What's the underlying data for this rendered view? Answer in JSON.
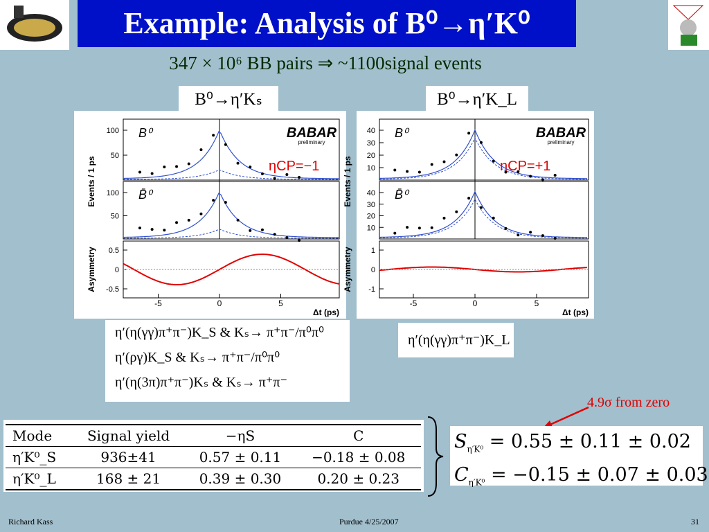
{
  "header": {
    "title": "Example: Analysis of B⁰→η′K⁰",
    "subtitle": "347 × 10⁶ BB pairs ⇒ ~1100signal events"
  },
  "panels": [
    {
      "label": "B⁰→η′Kₛ",
      "cp_label": "ηCP=−1",
      "y_axis_top": "Events / 1 ps",
      "y_axis_bottom": "Asymmetry",
      "x_axis": "Δt (ps)",
      "top_label": "B⁰",
      "middle_label": "B̄⁰",
      "logo": "BABAR",
      "logo_sub": "preliminary",
      "top_ticks": [
        "100",
        "50"
      ],
      "middle_ticks": [
        "100",
        "50"
      ],
      "asym_ticks": [
        "0.5",
        "0",
        "-0.5"
      ],
      "x_ticks": [
        "-5",
        "0",
        "5"
      ]
    },
    {
      "label": "B⁰→η′K_L",
      "cp_label": "ηCP=+1",
      "y_axis_top": "Events / 1 ps",
      "y_axis_bottom": "Asymmetry",
      "x_axis": "Δt (ps)",
      "top_label": "B⁰",
      "middle_label": "B̄⁰",
      "logo": "BABAR",
      "logo_sub": "preliminary",
      "top_ticks": [
        "40",
        "30",
        "20",
        "10"
      ],
      "middle_ticks": [
        "40",
        "30",
        "20",
        "10"
      ],
      "asym_ticks": [
        "1",
        "0",
        "-1"
      ],
      "x_ticks": [
        "-5",
        "0",
        "5"
      ]
    }
  ],
  "decays_left": [
    "η′(η(γγ)π⁺π⁻)K_S & Kₛ→ π⁺π⁻/π⁰π⁰",
    "η′(ργ)K_S & Kₛ→ π⁺π⁻/π⁰π⁰",
    "η′(η(3π)π⁺π⁻)Kₛ & Kₛ→ π⁺π⁻"
  ],
  "decays_right": [
    "η′(η(γγ)π⁺π⁻)K_L"
  ],
  "table": {
    "header": [
      "Mode",
      "Signal yield",
      "−ηS",
      "C"
    ],
    "rows": [
      [
        "η′K⁰_S",
        "936±41",
        "0.57 ± 0.11",
        "−0.18 ± 0.08"
      ],
      [
        "η′K⁰_L",
        "168 ± 21",
        "0.39 ± 0.30",
        "0.20 ± 0.23"
      ]
    ]
  },
  "results": [
    {
      "symbol": "S",
      "sub": "η′K⁰",
      "value": "=   0.55 ± 0.11 ± 0.02"
    },
    {
      "symbol": "C",
      "sub": "η′K⁰",
      "value": "= −0.15 ± 0.07 ± 0.03"
    }
  ],
  "annotation": "4.9σ from zero",
  "footer": {
    "author": "Richard Kass",
    "venue": "Purdue 4/25/2007",
    "page": "31"
  }
}
